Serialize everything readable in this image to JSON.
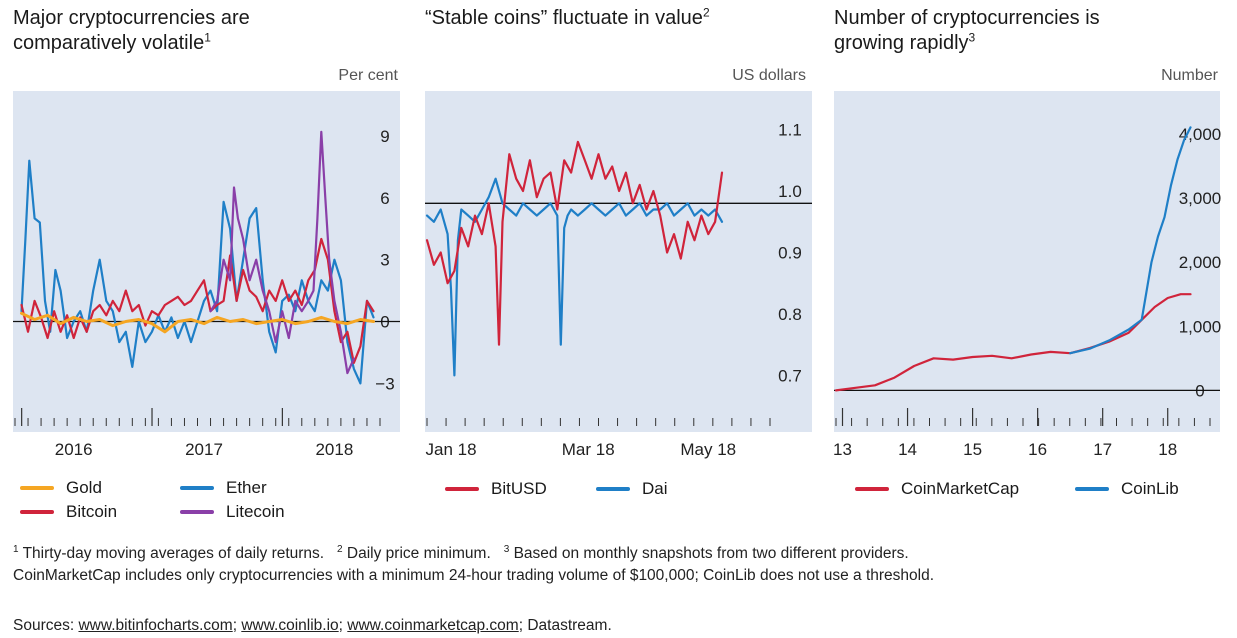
{
  "colors": {
    "bg": "#dde5f1",
    "gold": "#f5a623",
    "ether": "#1f7fc7",
    "bitcoin": "#d0243b",
    "litecoin": "#8a3fa8",
    "bitusd": "#d0243b",
    "dai": "#1f7fc7",
    "coinmarketcap": "#d0243b",
    "coinlib": "#1f7fc7"
  },
  "panels": {
    "p1": {
      "title_line1": "Major cryptocurrencies are",
      "title_line2": "comparatively volatile",
      "title_sup": "1",
      "unit": "Per cent"
    },
    "p2": {
      "title_line1": "“Stable coins” fluctuate in value",
      "title_sup": "2",
      "unit": "US dollars"
    },
    "p3": {
      "title_line1": "Number of cryptocurrencies is",
      "title_line2": "growing rapidly",
      "title_sup": "3",
      "unit": "Number"
    }
  },
  "legend": {
    "gold": "Gold",
    "ether": "Ether",
    "bitcoin": "Bitcoin",
    "litecoin": "Litecoin",
    "bitusd": "BitUSD",
    "dai": "Dai",
    "coinmarketcap": "CoinMarketCap",
    "coinlib": "CoinLib"
  },
  "footnotes": {
    "n1_mark": "1",
    "n1": "Thirty-day moving averages of daily returns.",
    "n2_mark": "2",
    "n2": "Daily price minimum.",
    "n3_mark": "3",
    "n3": "Based on monthly snapshots from two different providers.",
    "line2": "CoinMarketCap includes only cryptocurrencies with a minimum 24-hour trading volume of $100,000; CoinLib does not use a threshold."
  },
  "sources": {
    "label": "Sources:",
    "s1": "www.bitinfocharts.com",
    "sep1": ";",
    "s2": "www.coinlib.io",
    "sep2": ";",
    "s3": "www.coinmarketcap.com",
    "sep3": ";",
    "s4": "Datastream."
  },
  "chart_data": [
    {
      "type": "line",
      "title": "Major cryptocurrencies are comparatively volatile",
      "ylabel": "Per cent",
      "ylim": [
        -4,
        10.5
      ],
      "yticks": [
        "9",
        "6",
        "3",
        "0",
        "−3"
      ],
      "ytick_values": [
        9,
        6,
        3,
        0,
        -3
      ],
      "xlim": [
        2015.55,
        2018.35
      ],
      "xticks": [
        "2016",
        "2017",
        "2018"
      ],
      "xtick_values": [
        2016,
        2017,
        2018
      ],
      "zero_line": 0,
      "series": [
        {
          "name": "Ether",
          "key": "ether",
          "x": [
            2015.6,
            2015.63,
            2015.66,
            2015.7,
            2015.74,
            2015.78,
            2015.82,
            2015.86,
            2015.9,
            2015.95,
            2016.0,
            2016.05,
            2016.1,
            2016.15,
            2016.2,
            2016.25,
            2016.3,
            2016.35,
            2016.4,
            2016.45,
            2016.5,
            2016.55,
            2016.6,
            2016.65,
            2016.7,
            2016.75,
            2016.8,
            2016.85,
            2016.9,
            2016.95,
            2017.0,
            2017.05,
            2017.1,
            2017.15,
            2017.2,
            2017.25,
            2017.3,
            2017.35,
            2017.4,
            2017.45,
            2017.5,
            2017.55,
            2017.6,
            2017.65,
            2017.7,
            2017.75,
            2017.8,
            2017.85,
            2017.9,
            2017.95,
            2018.0,
            2018.05,
            2018.1,
            2018.15,
            2018.2,
            2018.25,
            2018.3
          ],
          "y": [
            0.5,
            4,
            7.8,
            5,
            4.8,
            1,
            -0.5,
            2.5,
            1.5,
            -0.8,
            0,
            0.5,
            -0.5,
            1.5,
            3,
            1,
            0.5,
            -1,
            -0.5,
            -2.2,
            0,
            -1,
            -0.5,
            0.3,
            -0.5,
            0.2,
            -0.8,
            0,
            -1,
            0,
            1,
            1.5,
            0.5,
            5.8,
            4.5,
            1,
            3,
            5,
            5.5,
            2,
            -0.5,
            -1.5,
            1,
            1.3,
            0.5,
            2,
            1,
            0.5,
            2,
            1.5,
            3,
            2,
            -1,
            -2.3,
            -3,
            1,
            0.2
          ]
        },
        {
          "name": "Bitcoin",
          "key": "bitcoin",
          "x": [
            2015.6,
            2015.65,
            2015.7,
            2015.75,
            2015.8,
            2015.85,
            2015.9,
            2015.95,
            2016.0,
            2016.05,
            2016.1,
            2016.15,
            2016.2,
            2016.25,
            2016.3,
            2016.35,
            2016.4,
            2016.45,
            2016.5,
            2016.55,
            2016.6,
            2016.65,
            2016.7,
            2016.75,
            2016.8,
            2016.85,
            2016.9,
            2016.95,
            2017.0,
            2017.05,
            2017.1,
            2017.15,
            2017.2,
            2017.25,
            2017.3,
            2017.35,
            2017.4,
            2017.45,
            2017.5,
            2017.55,
            2017.6,
            2017.65,
            2017.7,
            2017.75,
            2017.8,
            2017.85,
            2017.9,
            2017.95,
            2018.0,
            2018.05,
            2018.1,
            2018.15,
            2018.2,
            2018.25,
            2018.3
          ],
          "y": [
            0.8,
            -0.5,
            1,
            0.2,
            -0.8,
            0.5,
            -0.5,
            0.3,
            -0.8,
            0.2,
            -0.5,
            0.5,
            0.8,
            0.3,
            1,
            0.5,
            1.5,
            0.5,
            0.8,
            -0.2,
            0.5,
            0.3,
            0.8,
            1,
            1.2,
            0.8,
            1,
            1.5,
            2,
            0.5,
            0.8,
            1,
            3.2,
            1,
            2.5,
            1.5,
            1.2,
            0.5,
            1.5,
            1,
            2,
            1,
            1.5,
            0.8,
            2,
            2.5,
            4,
            3,
            0.5,
            -1,
            -0.5,
            -2,
            -1.2,
            1,
            0.5
          ]
        },
        {
          "name": "Litecoin",
          "key": "litecoin",
          "x": [
            2017.05,
            2017.1,
            2017.15,
            2017.2,
            2017.23,
            2017.26,
            2017.3,
            2017.35,
            2017.4,
            2017.45,
            2017.5,
            2017.55,
            2017.6,
            2017.65,
            2017.7,
            2017.75,
            2017.8,
            2017.84,
            2017.87,
            2017.9,
            2017.93,
            2017.96,
            2018.0,
            2018.05,
            2018.1,
            2018.15
          ],
          "y": [
            0.5,
            1,
            3,
            2,
            6.5,
            5,
            4,
            2,
            3,
            1.5,
            0.5,
            -1,
            0.5,
            -0.8,
            1,
            0.5,
            1,
            1.5,
            5,
            9.2,
            6,
            3,
            1,
            -0.5,
            -2.5,
            -1.8
          ]
        },
        {
          "name": "Gold",
          "key": "gold",
          "x": [
            2015.6,
            2015.7,
            2015.8,
            2015.9,
            2016.0,
            2016.1,
            2016.2,
            2016.3,
            2016.4,
            2016.5,
            2016.6,
            2016.7,
            2016.8,
            2016.9,
            2017.0,
            2017.1,
            2017.2,
            2017.3,
            2017.4,
            2017.5,
            2017.6,
            2017.7,
            2017.8,
            2017.9,
            2018.0,
            2018.1,
            2018.2,
            2018.3
          ],
          "y": [
            0.4,
            0.1,
            0.3,
            -0.1,
            0.2,
            0.0,
            0.1,
            -0.2,
            0.0,
            0.1,
            -0.1,
            -0.5,
            0.0,
            0.1,
            -0.1,
            0.2,
            0.0,
            0.1,
            -0.1,
            0.0,
            0.1,
            -0.1,
            0.0,
            0.2,
            0.0,
            -0.1,
            0.1,
            0.0
          ]
        }
      ]
    },
    {
      "type": "line",
      "title": "“Stable coins” fluctuate in value",
      "ylabel": "US dollars",
      "ylim": [
        0.66,
        1.14
      ],
      "yticks": [
        "1.1",
        "1.0",
        "0.9",
        "0.8",
        "0.7"
      ],
      "ytick_values": [
        1.1,
        1.0,
        0.9,
        0.8,
        0.7
      ],
      "xlim": [
        0,
        5
      ],
      "xticks": [
        "Jan 18",
        "Mar 18",
        "May 18"
      ],
      "xtick_values": [
        0.35,
        2.35,
        4.1
      ],
      "reference_line": 0.98,
      "series": [
        {
          "name": "Dai",
          "key": "dai",
          "x": [
            0,
            0.1,
            0.2,
            0.3,
            0.35,
            0.4,
            0.45,
            0.5,
            0.6,
            0.7,
            0.8,
            0.9,
            1.0,
            1.1,
            1.2,
            1.3,
            1.4,
            1.5,
            1.6,
            1.7,
            1.8,
            1.9,
            1.95,
            2.0,
            2.05,
            2.1,
            2.2,
            2.3,
            2.4,
            2.5,
            2.6,
            2.7,
            2.8,
            2.9,
            3.0,
            3.1,
            3.2,
            3.3,
            3.4,
            3.5,
            3.6,
            3.7,
            3.8,
            3.9,
            4.0,
            4.1,
            4.2,
            4.3
          ],
          "y": [
            0.96,
            0.95,
            0.97,
            0.93,
            0.84,
            0.7,
            0.92,
            0.97,
            0.96,
            0.95,
            0.97,
            0.99,
            1.02,
            0.98,
            0.97,
            0.96,
            0.98,
            0.97,
            0.96,
            0.97,
            0.98,
            0.96,
            0.75,
            0.94,
            0.96,
            0.97,
            0.96,
            0.97,
            0.98,
            0.97,
            0.96,
            0.97,
            0.98,
            0.96,
            0.97,
            0.98,
            0.96,
            0.97,
            0.97,
            0.98,
            0.96,
            0.97,
            0.98,
            0.96,
            0.97,
            0.96,
            0.97,
            0.95
          ]
        },
        {
          "name": "BitUSD",
          "key": "bitusd",
          "x": [
            0,
            0.1,
            0.2,
            0.3,
            0.4,
            0.5,
            0.6,
            0.7,
            0.8,
            0.9,
            1.0,
            1.05,
            1.1,
            1.2,
            1.3,
            1.4,
            1.5,
            1.6,
            1.7,
            1.8,
            1.9,
            2.0,
            2.1,
            2.2,
            2.3,
            2.4,
            2.5,
            2.6,
            2.7,
            2.8,
            2.9,
            3.0,
            3.1,
            3.2,
            3.3,
            3.4,
            3.5,
            3.6,
            3.7,
            3.8,
            3.9,
            4.0,
            4.1,
            4.2,
            4.3
          ],
          "y": [
            0.92,
            0.88,
            0.9,
            0.85,
            0.87,
            0.94,
            0.91,
            0.96,
            0.93,
            0.98,
            0.91,
            0.75,
            0.95,
            1.06,
            1.02,
            1.0,
            1.05,
            0.99,
            1.02,
            1.03,
            0.97,
            1.05,
            1.03,
            1.08,
            1.05,
            1.02,
            1.06,
            1.02,
            1.04,
            1.0,
            1.03,
            0.98,
            1.01,
            0.97,
            1.0,
            0.96,
            0.9,
            0.93,
            0.89,
            0.95,
            0.92,
            0.96,
            0.93,
            0.95,
            1.03
          ]
        }
      ]
    },
    {
      "type": "line",
      "title": "Number of cryptocurrencies is growing rapidly",
      "ylabel": "Number",
      "ylim": [
        -150,
        4450
      ],
      "yticks": [
        "4,000",
        "3,000",
        "2,000",
        "1,000",
        "0"
      ],
      "ytick_values": [
        4000,
        3000,
        2000,
        1000,
        0
      ],
      "xlim": [
        2013.0,
        2018.75
      ],
      "xticks": [
        "13",
        "14",
        "15",
        "16",
        "17",
        "18"
      ],
      "xtick_values": [
        2013.1,
        2014.1,
        2015.1,
        2016.1,
        2017.1,
        2018.1
      ],
      "zero_line": 0,
      "series": [
        {
          "name": "CoinMarketCap",
          "key": "coinmarketcap",
          "x": [
            2013.0,
            2013.3,
            2013.6,
            2013.9,
            2014.2,
            2014.5,
            2014.8,
            2015.1,
            2015.4,
            2015.7,
            2016.0,
            2016.3,
            2016.6,
            2016.9,
            2017.2,
            2017.5,
            2017.7,
            2017.9,
            2018.1,
            2018.3,
            2018.45
          ],
          "y": [
            0,
            40,
            80,
            200,
            380,
            500,
            480,
            520,
            540,
            500,
            560,
            600,
            580,
            660,
            760,
            900,
            1100,
            1300,
            1440,
            1500,
            1500
          ]
        },
        {
          "name": "CoinLib",
          "key": "coinlib",
          "x": [
            2016.6,
            2016.9,
            2017.2,
            2017.5,
            2017.7,
            2017.85,
            2017.95,
            2018.05,
            2018.15,
            2018.25,
            2018.35,
            2018.45
          ],
          "y": [
            580,
            650,
            780,
            950,
            1100,
            2000,
            2400,
            2700,
            3200,
            3600,
            3900,
            4100
          ]
        }
      ]
    }
  ]
}
